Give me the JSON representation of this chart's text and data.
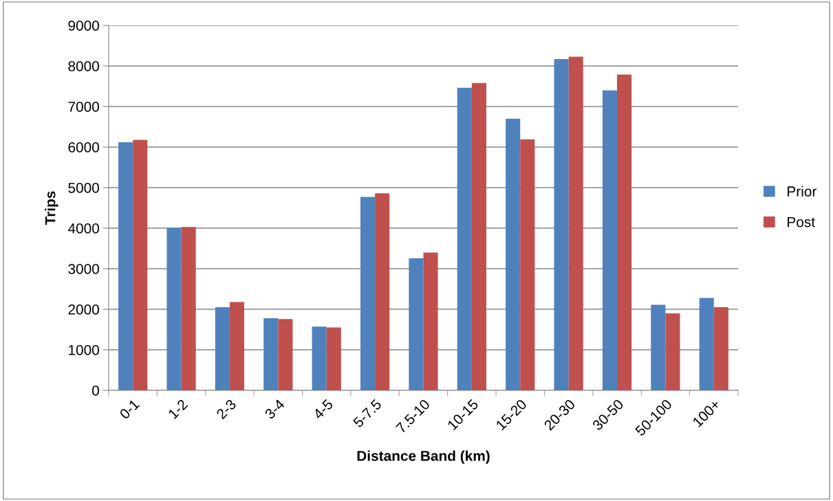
{
  "chart_data": {
    "type": "bar",
    "xlabel": "Distance Band (km)",
    "ylabel": "Trips",
    "categories": [
      "0-1",
      "1-2",
      "2-3",
      "3-4",
      "4-5",
      "5-7.5",
      "7.5-10",
      "10-15",
      "15-20",
      "20-30",
      "30-50",
      "50-100",
      "100+"
    ],
    "series": [
      {
        "name": "Prior",
        "color": "#4f81bd",
        "values": [
          6120,
          4010,
          2050,
          1780,
          1570,
          4770,
          3260,
          7460,
          6700,
          8170,
          7400,
          2110,
          2280
        ]
      },
      {
        "name": "Post",
        "color": "#c0504d",
        "values": [
          6180,
          4030,
          2180,
          1760,
          1550,
          4860,
          3400,
          7580,
          6190,
          8230,
          7790,
          1900,
          2050
        ]
      }
    ],
    "ylim": [
      0,
      9000
    ],
    "yticks": [
      0,
      1000,
      2000,
      3000,
      4000,
      5000,
      6000,
      7000,
      8000,
      9000
    ],
    "grid": "y",
    "legend": "right"
  }
}
